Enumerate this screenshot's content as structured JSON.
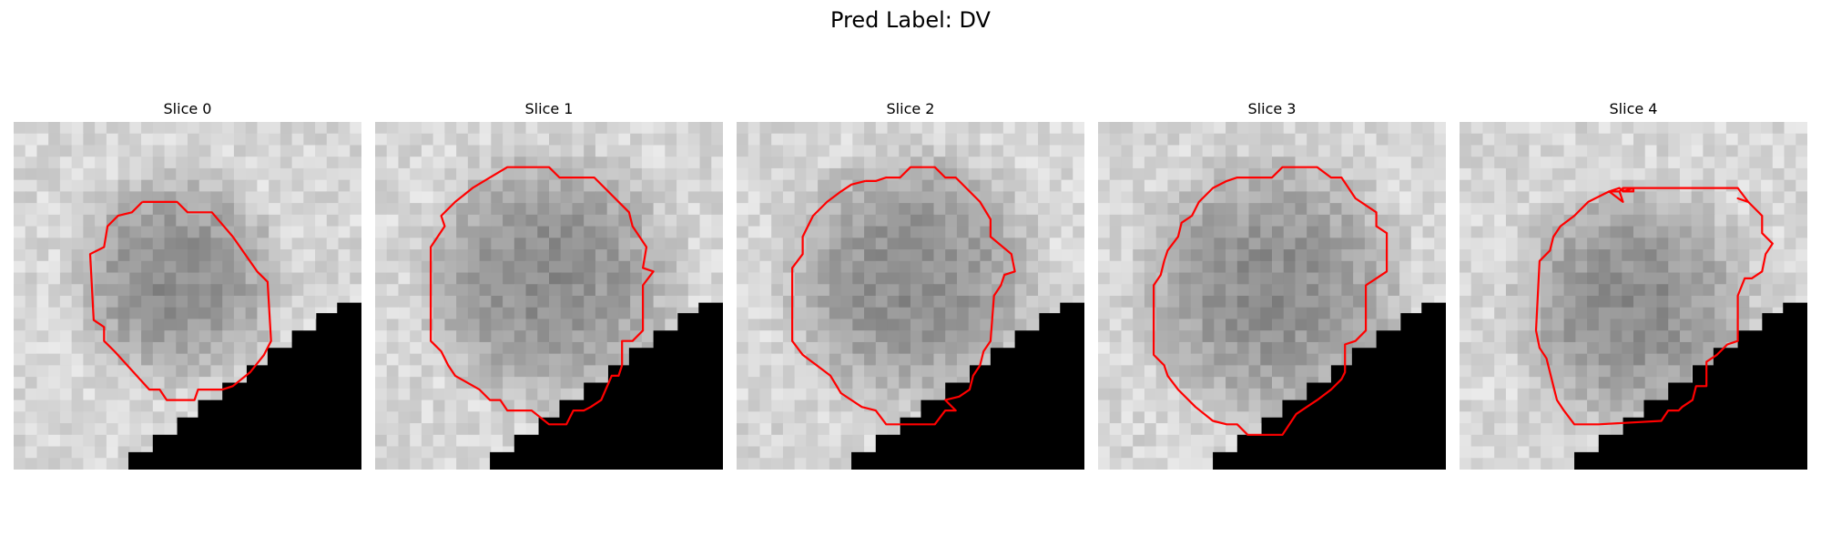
{
  "suptitle": "Pred Label: DV",
  "panels": [
    {
      "title": "Slice 0",
      "seed": 11,
      "dark_center": [
        0.47,
        0.45
      ],
      "dark_radius": 0.35,
      "contour_color": "#ff0000",
      "mask_steps": [
        [
          0.26,
          1.0
        ],
        [
          0.33,
          0.95
        ],
        [
          0.4,
          0.9
        ],
        [
          0.47,
          0.85
        ],
        [
          0.53,
          0.8
        ],
        [
          0.6,
          0.75
        ],
        [
          0.67,
          0.7
        ],
        [
          0.73,
          0.65
        ],
        [
          0.8,
          0.6
        ],
        [
          0.87,
          0.55
        ],
        [
          0.93,
          0.52
        ],
        [
          1.0,
          0.52
        ]
      ],
      "contour": [
        [
          0.37,
          0.23
        ],
        [
          0.47,
          0.23
        ],
        [
          0.5,
          0.26
        ],
        [
          0.57,
          0.26
        ],
        [
          0.63,
          0.33
        ],
        [
          0.7,
          0.43
        ],
        [
          0.73,
          0.46
        ],
        [
          0.74,
          0.63
        ],
        [
          0.72,
          0.67
        ],
        [
          0.68,
          0.72
        ],
        [
          0.63,
          0.76
        ],
        [
          0.6,
          0.77
        ],
        [
          0.53,
          0.77
        ],
        [
          0.52,
          0.8
        ],
        [
          0.44,
          0.8
        ],
        [
          0.42,
          0.77
        ],
        [
          0.39,
          0.77
        ],
        [
          0.29,
          0.66
        ],
        [
          0.26,
          0.63
        ],
        [
          0.26,
          0.59
        ],
        [
          0.23,
          0.57
        ],
        [
          0.22,
          0.38
        ],
        [
          0.26,
          0.36
        ],
        [
          0.27,
          0.3
        ],
        [
          0.3,
          0.27
        ],
        [
          0.34,
          0.26
        ],
        [
          0.37,
          0.23
        ]
      ]
    },
    {
      "title": "Slice 1",
      "seed": 23,
      "dark_center": [
        0.5,
        0.45
      ],
      "dark_radius": 0.42,
      "contour_color": "#ff0000",
      "mask_steps": [
        [
          0.26,
          1.0
        ],
        [
          0.33,
          0.95
        ],
        [
          0.4,
          0.9
        ],
        [
          0.47,
          0.85
        ],
        [
          0.53,
          0.8
        ],
        [
          0.6,
          0.75
        ],
        [
          0.67,
          0.7
        ],
        [
          0.73,
          0.65
        ],
        [
          0.8,
          0.6
        ],
        [
          0.87,
          0.55
        ],
        [
          0.93,
          0.52
        ],
        [
          1.0,
          0.52
        ]
      ],
      "contour": [
        [
          0.33,
          0.16
        ],
        [
          0.38,
          0.13
        ],
        [
          0.5,
          0.13
        ],
        [
          0.53,
          0.16
        ],
        [
          0.63,
          0.16
        ],
        [
          0.73,
          0.26
        ],
        [
          0.74,
          0.3
        ],
        [
          0.78,
          0.36
        ],
        [
          0.77,
          0.42
        ],
        [
          0.8,
          0.43
        ],
        [
          0.77,
          0.47
        ],
        [
          0.77,
          0.6
        ],
        [
          0.74,
          0.63
        ],
        [
          0.71,
          0.63
        ],
        [
          0.71,
          0.7
        ],
        [
          0.7,
          0.73
        ],
        [
          0.68,
          0.73
        ],
        [
          0.65,
          0.8
        ],
        [
          0.62,
          0.82
        ],
        [
          0.6,
          0.83
        ],
        [
          0.57,
          0.83
        ],
        [
          0.55,
          0.87
        ],
        [
          0.5,
          0.87
        ],
        [
          0.45,
          0.83
        ],
        [
          0.38,
          0.83
        ],
        [
          0.36,
          0.8
        ],
        [
          0.33,
          0.8
        ],
        [
          0.3,
          0.77
        ],
        [
          0.23,
          0.73
        ],
        [
          0.21,
          0.7
        ],
        [
          0.19,
          0.66
        ],
        [
          0.16,
          0.63
        ],
        [
          0.16,
          0.6
        ],
        [
          0.16,
          0.36
        ],
        [
          0.2,
          0.3
        ],
        [
          0.19,
          0.27
        ],
        [
          0.23,
          0.23
        ],
        [
          0.28,
          0.19
        ],
        [
          0.33,
          0.16
        ]
      ]
    },
    {
      "title": "Slice 2",
      "seed": 37,
      "dark_center": [
        0.5,
        0.45
      ],
      "dark_radius": 0.42,
      "contour_color": "#ff0000",
      "mask_steps": [
        [
          0.26,
          1.0
        ],
        [
          0.33,
          0.95
        ],
        [
          0.4,
          0.9
        ],
        [
          0.47,
          0.85
        ],
        [
          0.53,
          0.8
        ],
        [
          0.6,
          0.75
        ],
        [
          0.67,
          0.7
        ],
        [
          0.73,
          0.65
        ],
        [
          0.8,
          0.6
        ],
        [
          0.87,
          0.55
        ],
        [
          0.93,
          0.52
        ],
        [
          1.0,
          0.52
        ]
      ],
      "contour": [
        [
          0.37,
          0.17
        ],
        [
          0.4,
          0.17
        ],
        [
          0.43,
          0.16
        ],
        [
          0.47,
          0.16
        ],
        [
          0.5,
          0.13
        ],
        [
          0.57,
          0.13
        ],
        [
          0.6,
          0.16
        ],
        [
          0.63,
          0.16
        ],
        [
          0.67,
          0.2
        ],
        [
          0.7,
          0.23
        ],
        [
          0.73,
          0.28
        ],
        [
          0.73,
          0.33
        ],
        [
          0.79,
          0.38
        ],
        [
          0.8,
          0.43
        ],
        [
          0.77,
          0.44
        ],
        [
          0.76,
          0.47
        ],
        [
          0.74,
          0.5
        ],
        [
          0.73,
          0.63
        ],
        [
          0.71,
          0.66
        ],
        [
          0.7,
          0.7
        ],
        [
          0.68,
          0.73
        ],
        [
          0.67,
          0.77
        ],
        [
          0.64,
          0.79
        ],
        [
          0.6,
          0.8
        ],
        [
          0.63,
          0.83
        ],
        [
          0.6,
          0.83
        ],
        [
          0.57,
          0.87
        ],
        [
          0.43,
          0.87
        ],
        [
          0.4,
          0.83
        ],
        [
          0.36,
          0.82
        ],
        [
          0.3,
          0.78
        ],
        [
          0.27,
          0.73
        ],
        [
          0.23,
          0.7
        ],
        [
          0.19,
          0.67
        ],
        [
          0.16,
          0.63
        ],
        [
          0.16,
          0.42
        ],
        [
          0.19,
          0.38
        ],
        [
          0.19,
          0.33
        ],
        [
          0.22,
          0.27
        ],
        [
          0.26,
          0.23
        ],
        [
          0.3,
          0.2
        ],
        [
          0.33,
          0.18
        ],
        [
          0.37,
          0.17
        ]
      ]
    },
    {
      "title": "Slice 3",
      "seed": 53,
      "dark_center": [
        0.5,
        0.48
      ],
      "dark_radius": 0.44,
      "contour_color": "#ff0000",
      "mask_steps": [
        [
          0.26,
          1.0
        ],
        [
          0.33,
          0.95
        ],
        [
          0.4,
          0.9
        ],
        [
          0.47,
          0.85
        ],
        [
          0.53,
          0.8
        ],
        [
          0.6,
          0.75
        ],
        [
          0.67,
          0.7
        ],
        [
          0.73,
          0.65
        ],
        [
          0.8,
          0.6
        ],
        [
          0.87,
          0.55
        ],
        [
          0.93,
          0.52
        ],
        [
          1.0,
          0.52
        ]
      ],
      "contour": [
        [
          0.37,
          0.17
        ],
        [
          0.4,
          0.16
        ],
        [
          0.5,
          0.16
        ],
        [
          0.53,
          0.13
        ],
        [
          0.63,
          0.13
        ],
        [
          0.67,
          0.16
        ],
        [
          0.7,
          0.16
        ],
        [
          0.74,
          0.22
        ],
        [
          0.8,
          0.26
        ],
        [
          0.8,
          0.3
        ],
        [
          0.83,
          0.32
        ],
        [
          0.83,
          0.43
        ],
        [
          0.8,
          0.45
        ],
        [
          0.77,
          0.47
        ],
        [
          0.77,
          0.6
        ],
        [
          0.74,
          0.63
        ],
        [
          0.71,
          0.64
        ],
        [
          0.71,
          0.72
        ],
        [
          0.7,
          0.74
        ],
        [
          0.67,
          0.77
        ],
        [
          0.63,
          0.8
        ],
        [
          0.6,
          0.82
        ],
        [
          0.57,
          0.84
        ],
        [
          0.53,
          0.9
        ],
        [
          0.43,
          0.9
        ],
        [
          0.4,
          0.87
        ],
        [
          0.37,
          0.87
        ],
        [
          0.33,
          0.86
        ],
        [
          0.28,
          0.82
        ],
        [
          0.23,
          0.77
        ],
        [
          0.2,
          0.73
        ],
        [
          0.19,
          0.7
        ],
        [
          0.16,
          0.67
        ],
        [
          0.16,
          0.6
        ],
        [
          0.16,
          0.47
        ],
        [
          0.18,
          0.44
        ],
        [
          0.19,
          0.4
        ],
        [
          0.2,
          0.37
        ],
        [
          0.23,
          0.33
        ],
        [
          0.24,
          0.29
        ],
        [
          0.27,
          0.27
        ],
        [
          0.29,
          0.23
        ],
        [
          0.33,
          0.19
        ],
        [
          0.37,
          0.17
        ]
      ]
    },
    {
      "title": "Slice 4",
      "seed": 71,
      "dark_center": [
        0.5,
        0.53
      ],
      "dark_radius": 0.4,
      "contour_color": "#ff0000",
      "mask_steps": [
        [
          0.26,
          1.0
        ],
        [
          0.33,
          0.95
        ],
        [
          0.4,
          0.9
        ],
        [
          0.47,
          0.85
        ],
        [
          0.53,
          0.8
        ],
        [
          0.6,
          0.75
        ],
        [
          0.67,
          0.7
        ],
        [
          0.73,
          0.65
        ],
        [
          0.8,
          0.6
        ],
        [
          0.87,
          0.55
        ],
        [
          0.93,
          0.52
        ],
        [
          1.0,
          0.52
        ]
      ],
      "contour": [
        [
          0.43,
          0.2
        ],
        [
          0.46,
          0.19
        ],
        [
          0.47,
          0.2
        ],
        [
          0.5,
          0.19
        ],
        [
          0.5,
          0.2
        ],
        [
          0.47,
          0.2
        ],
        [
          0.47,
          0.19
        ],
        [
          0.46,
          0.2
        ],
        [
          0.47,
          0.23
        ],
        [
          0.43,
          0.2
        ],
        [
          0.46,
          0.2
        ],
        [
          0.47,
          0.19
        ],
        [
          0.8,
          0.19
        ],
        [
          0.83,
          0.23
        ],
        [
          0.8,
          0.22
        ],
        [
          0.83,
          0.23
        ],
        [
          0.87,
          0.27
        ],
        [
          0.87,
          0.32
        ],
        [
          0.9,
          0.35
        ],
        [
          0.88,
          0.38
        ],
        [
          0.87,
          0.43
        ],
        [
          0.84,
          0.45
        ],
        [
          0.82,
          0.45
        ],
        [
          0.8,
          0.5
        ],
        [
          0.8,
          0.63
        ],
        [
          0.77,
          0.64
        ],
        [
          0.74,
          0.67
        ],
        [
          0.71,
          0.69
        ],
        [
          0.71,
          0.76
        ],
        [
          0.68,
          0.76
        ],
        [
          0.67,
          0.8
        ],
        [
          0.64,
          0.82
        ],
        [
          0.63,
          0.83
        ],
        [
          0.6,
          0.83
        ],
        [
          0.58,
          0.86
        ],
        [
          0.4,
          0.87
        ],
        [
          0.33,
          0.87
        ],
        [
          0.3,
          0.83
        ],
        [
          0.28,
          0.8
        ],
        [
          0.27,
          0.76
        ],
        [
          0.25,
          0.68
        ],
        [
          0.23,
          0.65
        ],
        [
          0.22,
          0.6
        ],
        [
          0.23,
          0.4
        ],
        [
          0.26,
          0.37
        ],
        [
          0.27,
          0.33
        ],
        [
          0.29,
          0.3
        ],
        [
          0.33,
          0.27
        ],
        [
          0.37,
          0.23
        ],
        [
          0.39,
          0.22
        ],
        [
          0.43,
          0.2
        ]
      ]
    }
  ]
}
